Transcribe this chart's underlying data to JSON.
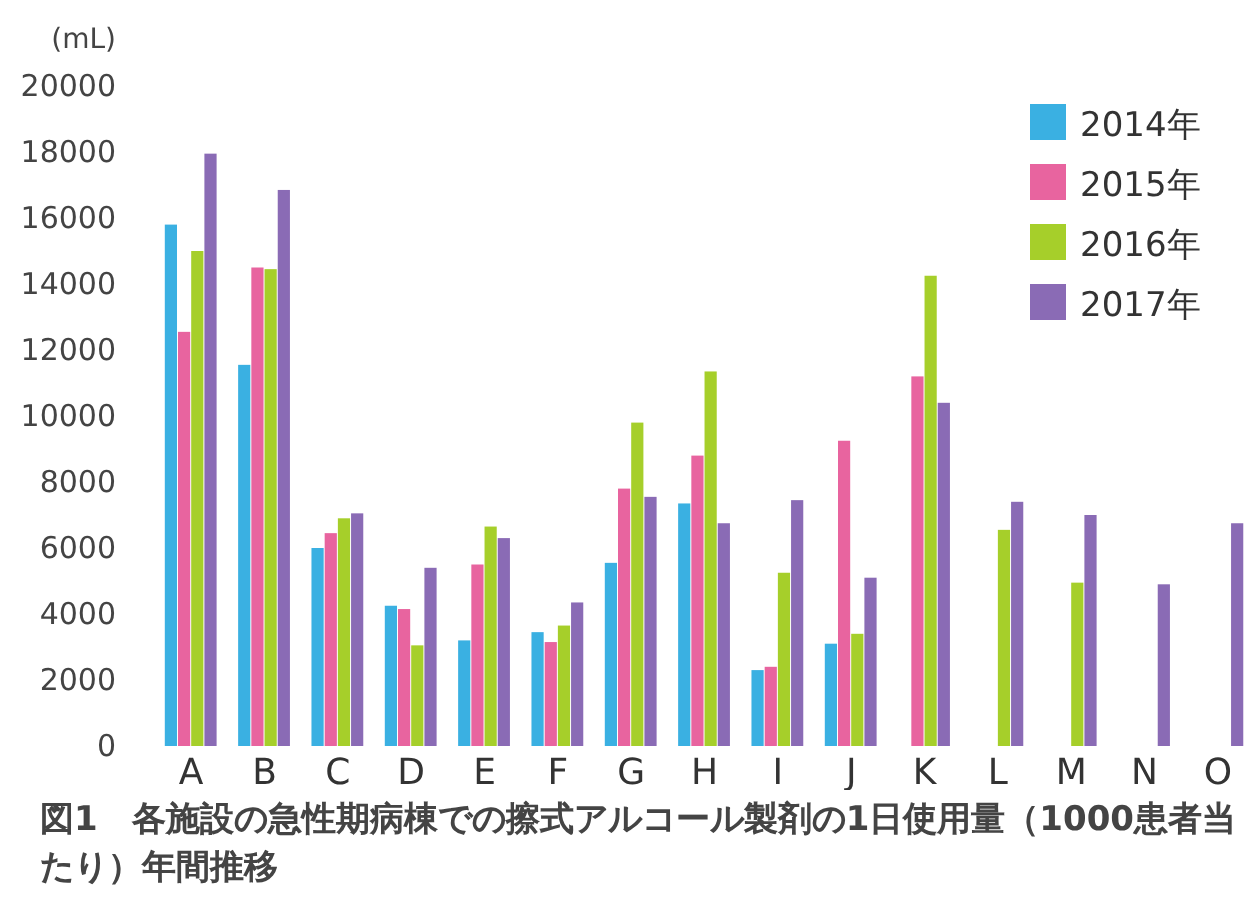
{
  "chart_data": {
    "type": "bar",
    "title": "図1　各施設の急性期病棟での擦式アルコール製剤の1日使用量（1000患者当たり）年間推移",
    "ylabel": "(mL)",
    "categories": [
      "A",
      "B",
      "C",
      "D",
      "E",
      "F",
      "G",
      "H",
      "I",
      "J",
      "K",
      "L",
      "M",
      "N",
      "O"
    ],
    "series": [
      {
        "name": "2014年",
        "color": "#3ab0e2",
        "values": [
          15800,
          11550,
          6000,
          4250,
          3200,
          3450,
          5550,
          7350,
          2300,
          3100,
          null,
          null,
          null,
          null,
          null
        ]
      },
      {
        "name": "2015年",
        "color": "#e8649f",
        "values": [
          12550,
          14500,
          6450,
          4150,
          5500,
          3150,
          7800,
          8800,
          2400,
          9250,
          11200,
          null,
          null,
          null,
          null
        ]
      },
      {
        "name": "2016年",
        "color": "#a6cf2a",
        "values": [
          15000,
          14450,
          6900,
          3050,
          6650,
          3650,
          9800,
          11350,
          5250,
          3400,
          14250,
          6550,
          4950,
          null,
          null
        ]
      },
      {
        "name": "2017年",
        "color": "#8a6bb5",
        "values": [
          17950,
          16850,
          7050,
          5400,
          6300,
          4350,
          7550,
          6750,
          7450,
          5100,
          10400,
          7400,
          7000,
          4900,
          6750
        ]
      }
    ],
    "ylim": [
      0,
      20000
    ],
    "yticks": [
      0,
      2000,
      4000,
      6000,
      8000,
      10000,
      12000,
      14000,
      16000,
      18000,
      20000
    ],
    "grid": false,
    "legend": "top right"
  }
}
